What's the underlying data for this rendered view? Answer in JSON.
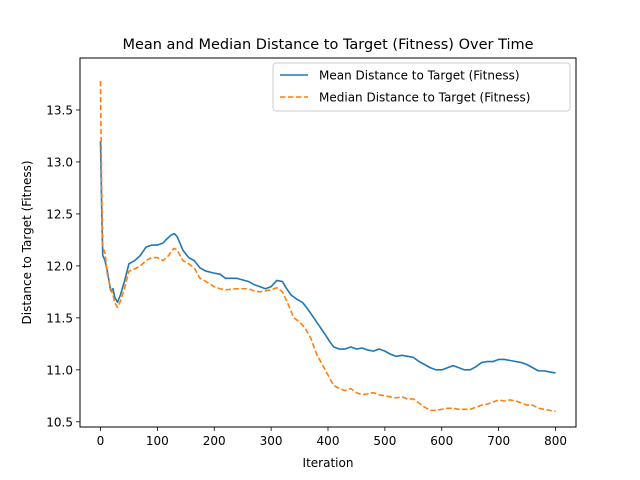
{
  "chart_data": {
    "type": "line",
    "title": "Mean and Median Distance to Target (Fitness) Over Time",
    "xlabel": "Iteration",
    "ylabel": "Distance to Target (Fitness)",
    "xlim": [
      -36,
      836
    ],
    "ylim": [
      10.45,
      14.0
    ],
    "xticks": [
      0,
      100,
      200,
      300,
      400,
      500,
      600,
      700,
      800
    ],
    "yticks": [
      10.5,
      11.0,
      11.5,
      12.0,
      12.5,
      13.0,
      13.5
    ],
    "ytick_labels": [
      "10.5",
      "11.0",
      "11.5",
      "12.0",
      "12.5",
      "13.0",
      "13.5"
    ],
    "grid": false,
    "legend_position": "top-right",
    "series": [
      {
        "name": "Mean Distance to Target (Fitness)",
        "color": "#1f77b4",
        "style": "solid",
        "points": [
          [
            0,
            13.2
          ],
          [
            2,
            12.6
          ],
          [
            4,
            12.1
          ],
          [
            8,
            12.05
          ],
          [
            12,
            11.95
          ],
          [
            18,
            11.76
          ],
          [
            22,
            11.78
          ],
          [
            25,
            11.7
          ],
          [
            30,
            11.65
          ],
          [
            35,
            11.72
          ],
          [
            42,
            11.85
          ],
          [
            50,
            12.02
          ],
          [
            60,
            12.05
          ],
          [
            70,
            12.1
          ],
          [
            80,
            12.18
          ],
          [
            90,
            12.2
          ],
          [
            100,
            12.2
          ],
          [
            110,
            12.22
          ],
          [
            115,
            12.25
          ],
          [
            125,
            12.3
          ],
          [
            130,
            12.31
          ],
          [
            135,
            12.28
          ],
          [
            145,
            12.15
          ],
          [
            155,
            12.08
          ],
          [
            165,
            12.05
          ],
          [
            175,
            11.98
          ],
          [
            185,
            11.95
          ],
          [
            200,
            11.93
          ],
          [
            210,
            11.92
          ],
          [
            220,
            11.88
          ],
          [
            240,
            11.88
          ],
          [
            260,
            11.85
          ],
          [
            270,
            11.82
          ],
          [
            280,
            11.8
          ],
          [
            290,
            11.78
          ],
          [
            300,
            11.8
          ],
          [
            305,
            11.83
          ],
          [
            310,
            11.86
          ],
          [
            320,
            11.85
          ],
          [
            325,
            11.8
          ],
          [
            335,
            11.72
          ],
          [
            345,
            11.68
          ],
          [
            355,
            11.65
          ],
          [
            365,
            11.58
          ],
          [
            375,
            11.5
          ],
          [
            385,
            11.42
          ],
          [
            395,
            11.34
          ],
          [
            402,
            11.28
          ],
          [
            410,
            11.22
          ],
          [
            420,
            11.2
          ],
          [
            430,
            11.2
          ],
          [
            440,
            11.22
          ],
          [
            450,
            11.2
          ],
          [
            460,
            11.21
          ],
          [
            470,
            11.19
          ],
          [
            480,
            11.18
          ],
          [
            490,
            11.2
          ],
          [
            500,
            11.18
          ],
          [
            510,
            11.15
          ],
          [
            520,
            11.13
          ],
          [
            530,
            11.14
          ],
          [
            540,
            11.13
          ],
          [
            550,
            11.12
          ],
          [
            560,
            11.08
          ],
          [
            570,
            11.05
          ],
          [
            580,
            11.02
          ],
          [
            590,
            11.0
          ],
          [
            600,
            11.0
          ],
          [
            610,
            11.02
          ],
          [
            620,
            11.04
          ],
          [
            630,
            11.02
          ],
          [
            640,
            11.0
          ],
          [
            650,
            11.0
          ],
          [
            660,
            11.03
          ],
          [
            670,
            11.07
          ],
          [
            680,
            11.08
          ],
          [
            690,
            11.08
          ],
          [
            700,
            11.1
          ],
          [
            710,
            11.1
          ],
          [
            720,
            11.09
          ],
          [
            730,
            11.08
          ],
          [
            740,
            11.07
          ],
          [
            750,
            11.05
          ],
          [
            760,
            11.02
          ],
          [
            770,
            10.99
          ],
          [
            780,
            10.99
          ],
          [
            790,
            10.98
          ],
          [
            800,
            10.97
          ]
        ]
      },
      {
        "name": "Median Distance to Target (Fitness)",
        "color": "#ff7f0e",
        "style": "dashed",
        "points": [
          [
            0,
            13.78
          ],
          [
            2,
            12.8
          ],
          [
            4,
            12.18
          ],
          [
            8,
            12.12
          ],
          [
            12,
            11.92
          ],
          [
            18,
            11.78
          ],
          [
            22,
            11.72
          ],
          [
            25,
            11.65
          ],
          [
            30,
            11.6
          ],
          [
            35,
            11.66
          ],
          [
            42,
            11.78
          ],
          [
            50,
            11.95
          ],
          [
            60,
            11.97
          ],
          [
            70,
            12.0
          ],
          [
            80,
            12.05
          ],
          [
            90,
            12.08
          ],
          [
            100,
            12.08
          ],
          [
            110,
            12.05
          ],
          [
            120,
            12.1
          ],
          [
            125,
            12.15
          ],
          [
            130,
            12.17
          ],
          [
            135,
            12.15
          ],
          [
            145,
            12.05
          ],
          [
            155,
            12.02
          ],
          [
            165,
            11.98
          ],
          [
            175,
            11.88
          ],
          [
            185,
            11.85
          ],
          [
            200,
            11.8
          ],
          [
            210,
            11.78
          ],
          [
            220,
            11.77
          ],
          [
            240,
            11.78
          ],
          [
            260,
            11.78
          ],
          [
            270,
            11.76
          ],
          [
            280,
            11.75
          ],
          [
            290,
            11.76
          ],
          [
            300,
            11.77
          ],
          [
            310,
            11.79
          ],
          [
            320,
            11.75
          ],
          [
            330,
            11.63
          ],
          [
            340,
            11.5
          ],
          [
            350,
            11.46
          ],
          [
            360,
            11.4
          ],
          [
            370,
            11.3
          ],
          [
            380,
            11.15
          ],
          [
            390,
            11.05
          ],
          [
            400,
            10.95
          ],
          [
            410,
            10.85
          ],
          [
            420,
            10.82
          ],
          [
            430,
            10.8
          ],
          [
            440,
            10.82
          ],
          [
            450,
            10.78
          ],
          [
            460,
            10.76
          ],
          [
            470,
            10.77
          ],
          [
            480,
            10.78
          ],
          [
            490,
            10.76
          ],
          [
            500,
            10.75
          ],
          [
            510,
            10.74
          ],
          [
            520,
            10.73
          ],
          [
            530,
            10.74
          ],
          [
            540,
            10.72
          ],
          [
            550,
            10.72
          ],
          [
            560,
            10.68
          ],
          [
            570,
            10.64
          ],
          [
            580,
            10.61
          ],
          [
            590,
            10.61
          ],
          [
            600,
            10.62
          ],
          [
            610,
            10.63
          ],
          [
            620,
            10.63
          ],
          [
            630,
            10.62
          ],
          [
            640,
            10.62
          ],
          [
            650,
            10.62
          ],
          [
            660,
            10.64
          ],
          [
            670,
            10.66
          ],
          [
            680,
            10.67
          ],
          [
            690,
            10.69
          ],
          [
            700,
            10.71
          ],
          [
            710,
            10.7
          ],
          [
            720,
            10.71
          ],
          [
            730,
            10.7
          ],
          [
            740,
            10.68
          ],
          [
            750,
            10.66
          ],
          [
            760,
            10.66
          ],
          [
            770,
            10.63
          ],
          [
            780,
            10.62
          ],
          [
            790,
            10.61
          ],
          [
            800,
            10.6
          ]
        ]
      }
    ]
  }
}
